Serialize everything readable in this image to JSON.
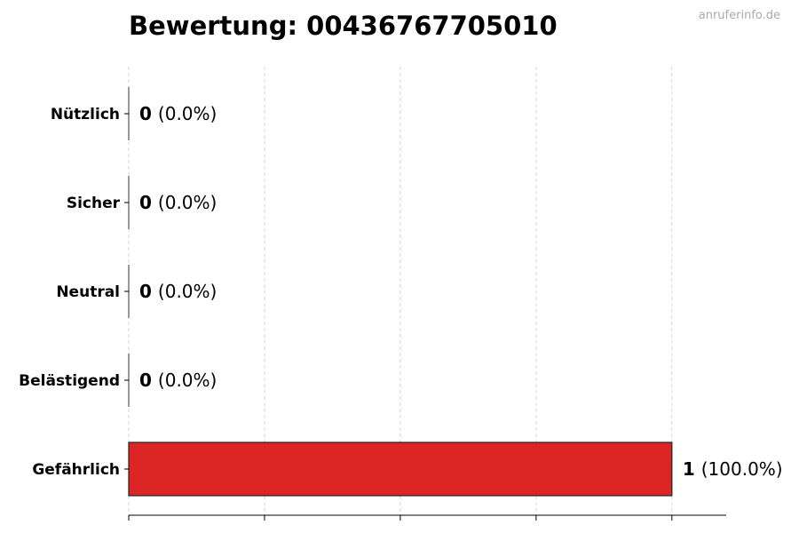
{
  "chart_data": {
    "type": "bar",
    "orientation": "horizontal",
    "title": "Bewertung: 00436767705010",
    "categories": [
      "Nützlich",
      "Sicher",
      "Neutral",
      "Belästigend",
      "Gefährlich"
    ],
    "values": [
      0,
      0,
      0,
      0,
      1
    ],
    "value_labels": [
      "0",
      "0",
      "0",
      "0",
      "1"
    ],
    "percent_labels": [
      "(0.0%)",
      "(0.0%)",
      "(0.0%)",
      "(0.0%)",
      "(100.0%)"
    ],
    "bar_colors": [
      "#dc2626",
      "#dc2626",
      "#dc2626",
      "#dc2626",
      "#dc2626"
    ],
    "xlim": [
      0,
      1.1
    ],
    "xticks": [
      0,
      0.25,
      0.5,
      0.75,
      1.0
    ],
    "xtick_labels_shown": false,
    "grid": "vertical dashed",
    "xlabel": "",
    "ylabel": ""
  },
  "watermark": "anruferinfo.de"
}
